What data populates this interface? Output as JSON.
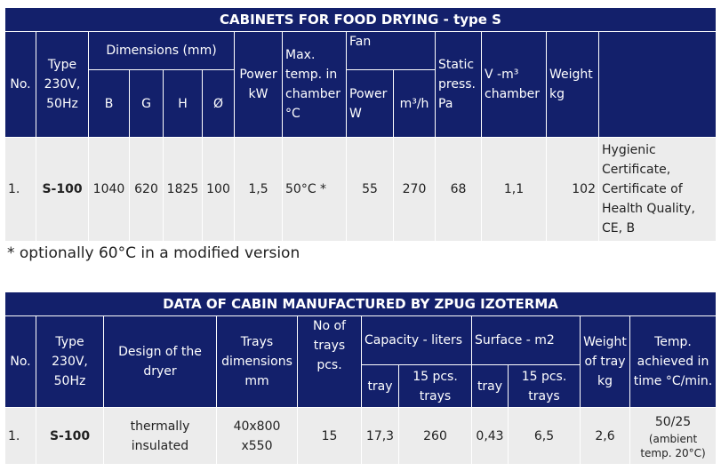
{
  "table1": {
    "title": "CABINETS FOR FOOD DRYING - type S",
    "headers": {
      "no": "No.",
      "type": "Type 230V, 50Hz",
      "dimensions": "Dimensions (mm)",
      "b": "B",
      "g": "G",
      "h": "H",
      "d": "Ø",
      "power": "Power kW",
      "max_temp": "Max. temp. in chamber °C",
      "fan": "Fan",
      "fan_power": "Power W",
      "fan_flow": "m³/h",
      "static": "Static press. Pa",
      "volume": "V -m³ chamber",
      "weight": "Weight kg"
    },
    "rows": [
      [
        "1.",
        "S-100",
        "1040",
        "620",
        "1825",
        "100",
        "1,5",
        "50°C *",
        "55",
        "270",
        "68",
        "1,1",
        "102",
        "Hygienic Certificate, Certificate of Health Quality, CE, B"
      ]
    ],
    "footnote": "* optionally 60°C in a modified version"
  },
  "table2": {
    "title": "DATA OF CABIN MANUFACTURED BY ZPUG IZOTERMA",
    "headers": {
      "no": "No.",
      "type": "Type 230V, 50Hz",
      "design": "Design of the dryer",
      "trays": "Trays dimensions mm",
      "no_trays": "No of trays pcs.",
      "capacity": "Capacity - liters",
      "cap_tray": "tray",
      "cap_15": "15 pcs. trays",
      "surface": "Surface - m2",
      "surf_tray": "tray",
      "surf_15": "15 pcs. trays",
      "weight": "Weight of tray kg",
      "temp": "Temp. achieved in time °C/min."
    },
    "rows": [
      [
        "1.",
        "S-100",
        "thermally insulated",
        "40x800 x550",
        "15",
        "17,3",
        "260",
        "0,43",
        "6,5",
        "2,6",
        "50/25",
        "(ambient temp. 20°C)"
      ]
    ]
  }
}
